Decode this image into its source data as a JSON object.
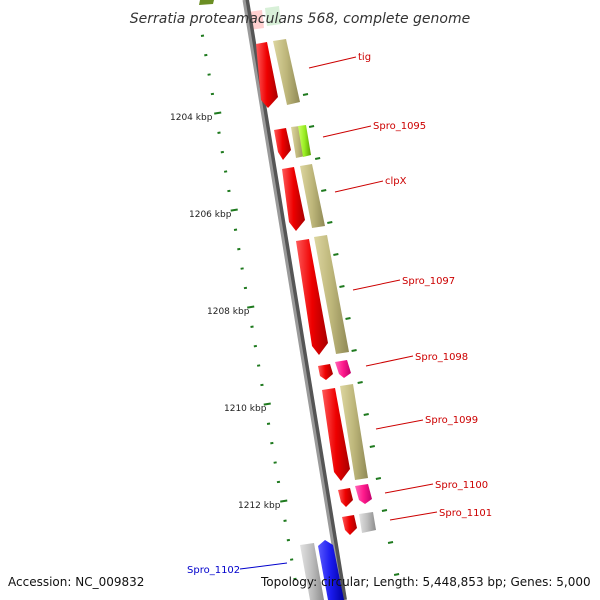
{
  "title": "Serratia proteamaculans 568, complete genome",
  "footer": {
    "accession": "Accession: NC_009832",
    "summary": "Topology: circular; Length: 5,448,853 bp; Genes: 5,000"
  },
  "colors": {
    "backbone": "#8a8a8a",
    "tick": "#1f7a1f",
    "gene_label": "#cc0000",
    "gene_label_alt": "#0000cc"
  },
  "ticks": [
    {
      "label": "1204 kbp"
    },
    {
      "label": "1206 kbp"
    },
    {
      "label": "1208 kbp"
    },
    {
      "label": "1210 kbp"
    },
    {
      "label": "1212 kbp"
    }
  ],
  "gene_labels": [
    {
      "text": "tig"
    },
    {
      "text": "Spro_1095"
    },
    {
      "text": "clpX"
    },
    {
      "text": "Spro_1097"
    },
    {
      "text": "Spro_1098"
    },
    {
      "text": "Spro_1099"
    },
    {
      "text": "Spro_1100"
    },
    {
      "text": "Spro_1101"
    },
    {
      "text": "Spro_1102"
    }
  ],
  "feature_colors": {
    "cds": "#ee0000",
    "gene": "#bdb67a",
    "misc": "#ff1a8c",
    "other": "#b8b8b8",
    "highlight": "#99ee22",
    "blue": "#1a1aee",
    "olive": "#6b8e23"
  }
}
